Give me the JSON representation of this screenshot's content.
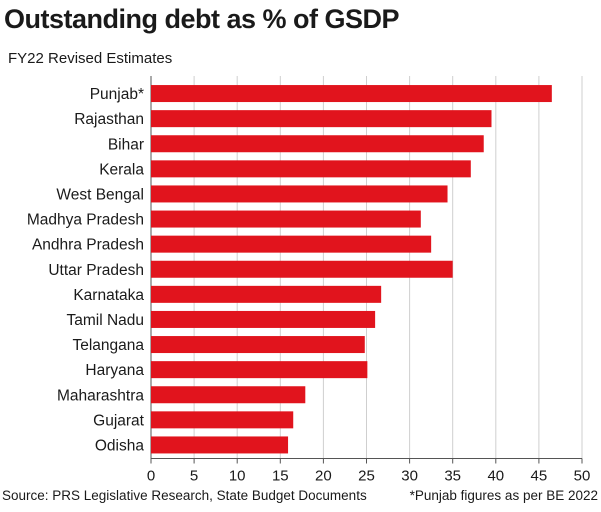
{
  "chart_data": {
    "type": "bar",
    "orientation": "horizontal",
    "title": "Outstanding debt as % of GSDP",
    "subtitle": "FY22 Revised Estimates",
    "categories": [
      "Punjab*",
      "Rajasthan",
      "Bihar",
      "Kerala",
      "West Bengal",
      "Madhya Pradesh",
      "Andhra Pradesh",
      "Uttar Pradesh",
      "Karnataka",
      "Tamil Nadu",
      "Telangana",
      "Haryana",
      "Maharashtra",
      "Gujarat",
      "Odisha"
    ],
    "values": [
      46.5,
      39.5,
      38.6,
      37.1,
      34.4,
      31.3,
      32.5,
      35.0,
      26.7,
      26.0,
      24.8,
      25.1,
      17.9,
      16.5,
      15.9
    ],
    "xlim": [
      0,
      50
    ],
    "xticks": [
      "0",
      "5",
      "10",
      "15",
      "20",
      "25",
      "30",
      "35",
      "40",
      "45",
      "50"
    ],
    "grid": true,
    "bar_color": "#e1141d",
    "source": "Source: PRS Legislative Research, State Budget Documents",
    "note": "*Punjab figures as per BE 2022"
  }
}
